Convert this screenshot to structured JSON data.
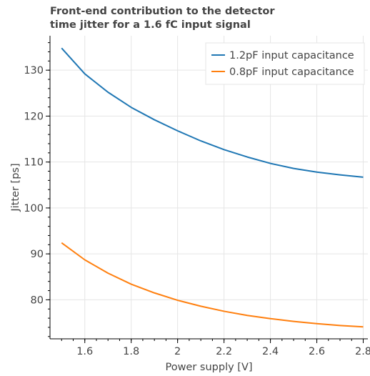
{
  "chart_data": {
    "type": "line",
    "title_lines": [
      "Front-end contribution to the detector",
      "time jitter for a 1.6 fC input signal"
    ],
    "xlabel": "Power supply [V]",
    "ylabel": "Jitter [ps]",
    "xlim": [
      1.45,
      2.82
    ],
    "ylim": [
      71.5,
      137.5
    ],
    "xticks": [
      1.6,
      1.8,
      2,
      2.2,
      2.4,
      2.6,
      2.8
    ],
    "xtick_labels": [
      "1.6",
      "1.8",
      "2",
      "2.2",
      "2.4",
      "2.6",
      "2.8"
    ],
    "yticks": [
      80,
      90,
      100,
      110,
      120,
      130
    ],
    "ytick_labels": [
      "80",
      "90",
      "100",
      "110",
      "120",
      "130"
    ],
    "grid": true,
    "legend_position": "top-right",
    "x": [
      1.5,
      1.6,
      1.7,
      1.8,
      1.9,
      2.0,
      2.1,
      2.2,
      2.3,
      2.4,
      2.5,
      2.6,
      2.7,
      2.8
    ],
    "series": [
      {
        "name": "1.2pF input capacitance",
        "color": "#1f77b4",
        "values": [
          134.8,
          129.2,
          125.2,
          121.9,
          119.2,
          116.8,
          114.6,
          112.7,
          111.1,
          109.7,
          108.6,
          107.8,
          107.2,
          106.7
        ]
      },
      {
        "name": "0.8pF input capacitance",
        "color": "#ff7f0e",
        "values": [
          92.4,
          88.7,
          85.8,
          83.4,
          81.5,
          79.9,
          78.6,
          77.5,
          76.6,
          75.9,
          75.3,
          74.8,
          74.4,
          74.1
        ]
      }
    ]
  }
}
